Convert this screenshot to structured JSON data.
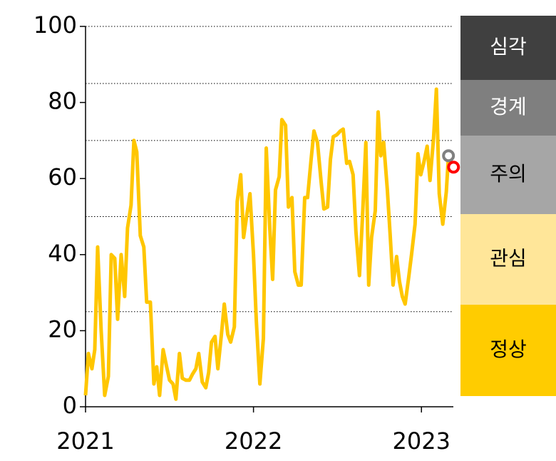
{
  "chart_data": {
    "type": "line",
    "x": [
      2021.0,
      2021.017,
      2021.038,
      2021.055,
      2021.072,
      2021.093,
      2021.114,
      2021.136,
      2021.153,
      2021.174,
      2021.191,
      2021.212,
      2021.233,
      2021.25,
      2021.271,
      2021.288,
      2021.305,
      2021.326,
      2021.347,
      2021.364,
      2021.386,
      2021.407,
      2021.424,
      2021.441,
      2021.462,
      2021.483,
      2021.5,
      2021.521,
      2021.538,
      2021.559,
      2021.576,
      2021.597,
      2021.619,
      2021.636,
      2021.657,
      2021.674,
      2021.695,
      2021.716,
      2021.733,
      2021.75,
      2021.771,
      2021.788,
      2021.809,
      2021.826,
      2021.847,
      2021.864,
      2021.886,
      2021.903,
      2021.924,
      2021.941,
      2021.962,
      2021.979,
      2022.0,
      2022.017,
      2022.038,
      2022.059,
      2022.076,
      2022.097,
      2022.114,
      2022.131,
      2022.153,
      2022.169,
      2022.191,
      2022.208,
      2022.229,
      2022.246,
      2022.267,
      2022.284,
      2022.305,
      2022.322,
      2022.343,
      2022.36,
      2022.381,
      2022.403,
      2022.419,
      2022.441,
      2022.458,
      2022.475,
      2022.496,
      2022.517,
      2022.534,
      2022.555,
      2022.572,
      2022.593,
      2022.61,
      2022.631,
      2022.648,
      2022.669,
      2022.686,
      2022.703,
      2022.725,
      2022.742,
      2022.758,
      2022.775,
      2022.797,
      2022.814,
      2022.831,
      2022.852,
      2022.869,
      2022.886,
      2022.903,
      2022.924,
      2022.941,
      2022.962,
      2022.979,
      2022.996,
      2023.013,
      2023.034,
      2023.051,
      2023.072,
      2023.089,
      2023.106,
      2023.127,
      2023.148,
      2023.161
    ],
    "series": [
      {
        "color": "#ffc600",
        "values": [
          3,
          14,
          10,
          15,
          42,
          20,
          3,
          8,
          40,
          39,
          23,
          40,
          29,
          47,
          53,
          70,
          67,
          45,
          42,
          27.5,
          27.5,
          6,
          10.5,
          3,
          15,
          10.5,
          7,
          6,
          2,
          14,
          7.5,
          7,
          7,
          8.5,
          10,
          14,
          6.5,
          5,
          9,
          17,
          18.5,
          10,
          19,
          27,
          19,
          17,
          21,
          54,
          61,
          44.5,
          51,
          56,
          40,
          22.5,
          6,
          18,
          68,
          47,
          33.5,
          57,
          60.5,
          75.5,
          74,
          52.5,
          55,
          35.5,
          32,
          32,
          55,
          55,
          65,
          72.5,
          69.5,
          59,
          52,
          52.5,
          65,
          71,
          71.5,
          72.5,
          73,
          64,
          64.5,
          61,
          46,
          34.5,
          49,
          69.5,
          32,
          44.5,
          51.5,
          77.5,
          66,
          69.5,
          57,
          45,
          32,
          39.5,
          33,
          29,
          27,
          34,
          40,
          48,
          66.5,
          61,
          64,
          68.5,
          59.5,
          70.5,
          83.5,
          56,
          48,
          56.5,
          66
        ]
      }
    ],
    "markers": [
      {
        "x": 2023.161,
        "value": 66,
        "color": "#808080"
      },
      {
        "x": 2023.191,
        "value": 63,
        "color": "#ff0000"
      }
    ],
    "xlim": [
      2021,
      2023.19
    ],
    "xticks": [
      2021,
      2022,
      2023
    ],
    "ylim": [
      0,
      100
    ],
    "yticks": [
      0,
      20,
      40,
      60,
      80,
      100
    ],
    "reference_lines": [
      25,
      50,
      70,
      85,
      100
    ],
    "levels": [
      {
        "label": "심각",
        "color": "#404040"
      },
      {
        "label": "경계",
        "color": "#7f7f7f"
      },
      {
        "label": "주의",
        "color": "#a6a6a6"
      },
      {
        "label": "관심",
        "color": "#ffe699"
      },
      {
        "label": "정상",
        "color": "#ffcc00"
      }
    ]
  }
}
